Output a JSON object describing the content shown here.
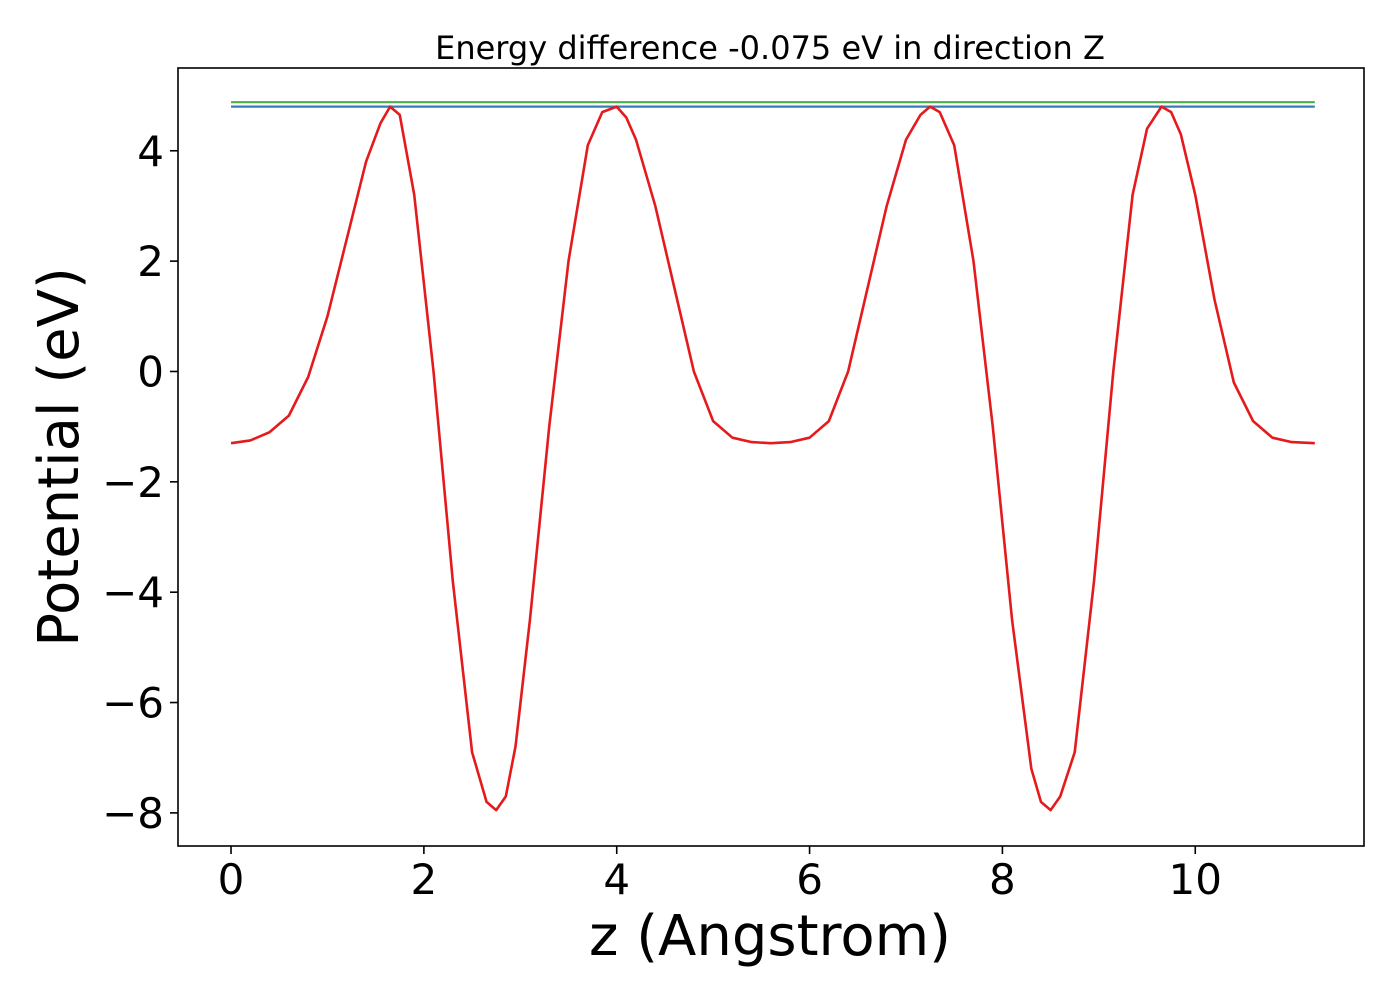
{
  "chart_data": {
    "type": "line",
    "title": "Energy difference -0.075 eV in direction Z",
    "xlabel": "z (Angstrom)",
    "ylabel": "Potential (eV)",
    "xlim": [
      -0.55,
      11.75
    ],
    "ylim": [
      -8.6,
      5.5
    ],
    "xticks": [
      0,
      2,
      4,
      6,
      8,
      10
    ],
    "xtick_labels": [
      "0",
      "2",
      "4",
      "6",
      "8",
      "10"
    ],
    "yticks": [
      -8,
      -6,
      -4,
      -2,
      0,
      2,
      4
    ],
    "ytick_labels": [
      "−8",
      "−6",
      "−4",
      "−2",
      "0",
      "2",
      "4"
    ],
    "grid": false,
    "legend": "none",
    "series": [
      {
        "color": "#e41a1c",
        "x": [
          0.0,
          0.2,
          0.4,
          0.6,
          0.8,
          1.0,
          1.2,
          1.4,
          1.55,
          1.65,
          1.75,
          1.9,
          2.1,
          2.3,
          2.5,
          2.65,
          2.75,
          2.85,
          2.95,
          3.1,
          3.3,
          3.5,
          3.7,
          3.85,
          4.0,
          4.1,
          4.2,
          4.4,
          4.6,
          4.8,
          5.0,
          5.2,
          5.4,
          5.6,
          5.8,
          6.0,
          6.2,
          6.4,
          6.6,
          6.8,
          7.0,
          7.15,
          7.25,
          7.35,
          7.5,
          7.7,
          7.9,
          8.1,
          8.3,
          8.4,
          8.5,
          8.6,
          8.75,
          8.95,
          9.15,
          9.35,
          9.5,
          9.65,
          9.75,
          9.85,
          10.0,
          10.2,
          10.4,
          10.6,
          10.8,
          11.0,
          11.24
        ],
        "y": [
          -1.3,
          -1.25,
          -1.1,
          -0.8,
          -0.1,
          1.0,
          2.4,
          3.8,
          4.5,
          4.8,
          4.65,
          3.2,
          0.0,
          -3.8,
          -6.9,
          -7.8,
          -7.95,
          -7.7,
          -6.8,
          -4.5,
          -1.0,
          2.0,
          4.1,
          4.7,
          4.8,
          4.6,
          4.2,
          3.0,
          1.5,
          0.0,
          -0.9,
          -1.2,
          -1.28,
          -1.3,
          -1.28,
          -1.2,
          -0.9,
          0.0,
          1.5,
          3.0,
          4.2,
          4.65,
          4.8,
          4.7,
          4.1,
          2.0,
          -1.0,
          -4.5,
          -7.2,
          -7.8,
          -7.95,
          -7.7,
          -6.9,
          -3.8,
          0.0,
          3.2,
          4.4,
          4.8,
          4.7,
          4.3,
          3.2,
          1.3,
          -0.2,
          -0.9,
          -1.2,
          -1.28,
          -1.3
        ]
      },
      {
        "color": "#4daf4a",
        "x": [
          0.0,
          11.24
        ],
        "y": [
          4.88,
          4.88
        ]
      },
      {
        "color": "#377eb8",
        "x": [
          0.0,
          11.24
        ],
        "y": [
          4.8,
          4.8
        ]
      }
    ]
  }
}
